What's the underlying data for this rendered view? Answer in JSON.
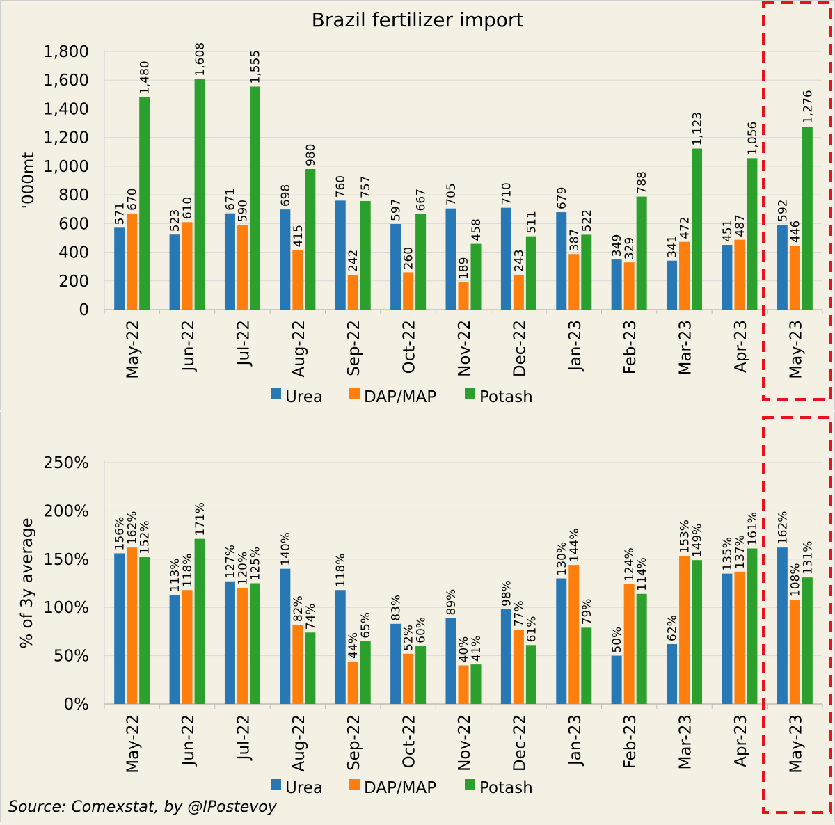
{
  "source": "Source: Comexstat, by @IPostevoy",
  "colors": {
    "urea": "#2878b5",
    "dap_map": "#ff7f0e",
    "potash": "#2ca02c",
    "highlight": "#e8121c",
    "grid": "#d9d9d9",
    "panel_bg": "#f4f0e4"
  },
  "chart_data": [
    {
      "type": "bar",
      "title": "Brazil fertilizer import",
      "ylabel": "'000mt",
      "xlabel": "",
      "ylim": [
        0,
        1800
      ],
      "yticks": [
        0,
        200,
        400,
        600,
        800,
        1000,
        1200,
        1400,
        1600,
        1800
      ],
      "ytick_labels": [
        "0",
        "200",
        "400",
        "600",
        "800",
        "1,000",
        "1,200",
        "1,400",
        "1,600",
        "1,800"
      ],
      "grid": true,
      "legend": "bottom-center",
      "highlighted_category": "May-23",
      "categories": [
        "May-22",
        "Jun-22",
        "Jul-22",
        "Aug-22",
        "Sep-22",
        "Oct-22",
        "Nov-22",
        "Dec-22",
        "Jan-23",
        "Feb-23",
        "Mar-23",
        "Apr-23",
        "May-23"
      ],
      "series": [
        {
          "name": "Urea",
          "values": [
            571,
            523,
            671,
            698,
            760,
            597,
            705,
            710,
            679,
            349,
            341,
            451,
            592
          ],
          "labels": [
            "571",
            "523",
            "671",
            "698",
            "760",
            "597",
            "705",
            "710",
            "679",
            "349",
            "341",
            "451",
            "592"
          ]
        },
        {
          "name": "DAP/MAP",
          "values": [
            670,
            610,
            590,
            415,
            242,
            260,
            189,
            243,
            387,
            329,
            472,
            487,
            446
          ],
          "labels": [
            "670",
            "610",
            "590",
            "415",
            "242",
            "260",
            "189",
            "243",
            "387",
            "329",
            "472",
            "487",
            "446"
          ]
        },
        {
          "name": "Potash",
          "values": [
            1480,
            1608,
            1555,
            980,
            757,
            667,
            458,
            511,
            522,
            788,
            1123,
            1056,
            1276
          ],
          "labels": [
            "1,480",
            "1,608",
            "1,555",
            "980",
            "757",
            "667",
            "458",
            "511",
            "522",
            "788",
            "1,123",
            "1,056",
            "1,276"
          ]
        }
      ]
    },
    {
      "type": "bar",
      "title": "",
      "ylabel": "% of 3y average",
      "xlabel": "",
      "ylim": [
        0,
        250
      ],
      "yticks": [
        0,
        50,
        100,
        150,
        200,
        250
      ],
      "ytick_labels": [
        "0%",
        "50%",
        "100%",
        "150%",
        "200%",
        "250%"
      ],
      "grid": true,
      "legend": "bottom-center",
      "highlighted_category": "May-23",
      "categories": [
        "May-22",
        "Jun-22",
        "Jul-22",
        "Aug-22",
        "Sep-22",
        "Oct-22",
        "Nov-22",
        "Dec-22",
        "Jan-23",
        "Feb-23",
        "Mar-23",
        "Apr-23",
        "May-23"
      ],
      "series": [
        {
          "name": "Urea",
          "values": [
            156,
            113,
            127,
            140,
            118,
            83,
            89,
            98,
            130,
            50,
            62,
            135,
            162
          ],
          "labels": [
            "156%",
            "113%",
            "127%",
            "140%",
            "118%",
            "83%",
            "89%",
            "98%",
            "130%",
            "50%",
            "62%",
            "135%",
            "162%"
          ]
        },
        {
          "name": "DAP/MAP",
          "values": [
            162,
            118,
            120,
            82,
            44,
            52,
            40,
            77,
            144,
            124,
            153,
            137,
            108
          ],
          "labels": [
            "162%",
            "118%",
            "120%",
            "82%",
            "44%",
            "52%",
            "40%",
            "77%",
            "144%",
            "124%",
            "153%",
            "137%",
            "108%"
          ]
        },
        {
          "name": "Potash",
          "values": [
            152,
            171,
            125,
            74,
            65,
            60,
            41,
            61,
            79,
            114,
            149,
            161,
            131
          ],
          "labels": [
            "152%",
            "171%",
            "125%",
            "74%",
            "65%",
            "60%",
            "41%",
            "61%",
            "79%",
            "114%",
            "149%",
            "161%",
            "131%"
          ]
        }
      ]
    }
  ]
}
